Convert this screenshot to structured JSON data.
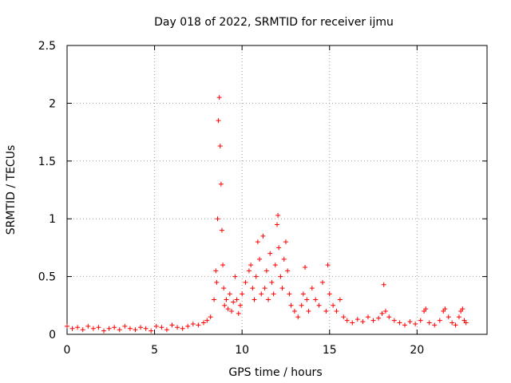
{
  "chart_data": {
    "type": "scatter",
    "title": "Day 018 of 2022, SRMTID for receiver ijmu",
    "xlabel": "GPS time / hours",
    "ylabel": "SRMTID / TECUs",
    "xlim": [
      0,
      24
    ],
    "ylim": [
      0,
      2.5
    ],
    "xticks": [
      0,
      5,
      10,
      15,
      20
    ],
    "yticks": [
      0,
      0.5,
      1,
      1.5,
      2,
      2.5
    ],
    "xtick_labels": [
      "0",
      "5",
      "10",
      "15",
      "20"
    ],
    "ytick_labels": [
      "0",
      "0.5",
      "1",
      "1.5",
      "2",
      "2.5"
    ],
    "grid": true,
    "marker": "plus",
    "series": [
      {
        "name": "SRMTID",
        "color": "#ff0000",
        "x": [
          0.0,
          0.3,
          0.6,
          0.9,
          1.2,
          1.5,
          1.8,
          2.1,
          2.4,
          2.7,
          3.0,
          3.3,
          3.6,
          3.9,
          4.2,
          4.5,
          4.8,
          5.1,
          5.4,
          5.7,
          6.0,
          6.3,
          6.6,
          6.9,
          7.2,
          7.5,
          7.8,
          8.0,
          8.2,
          8.4,
          8.5,
          8.55,
          8.6,
          8.65,
          8.7,
          8.75,
          8.8,
          8.85,
          8.9,
          8.95,
          9.0,
          9.1,
          9.2,
          9.3,
          9.4,
          9.5,
          9.6,
          9.7,
          9.8,
          9.9,
          10.0,
          10.2,
          10.4,
          10.5,
          10.6,
          10.7,
          10.8,
          10.9,
          11.0,
          11.1,
          11.2,
          11.3,
          11.4,
          11.5,
          11.6,
          11.7,
          11.8,
          11.9,
          12.0,
          12.05,
          12.1,
          12.2,
          12.3,
          12.4,
          12.5,
          12.6,
          12.7,
          12.8,
          13.0,
          13.2,
          13.4,
          13.5,
          13.6,
          13.7,
          13.8,
          14.0,
          14.2,
          14.4,
          14.6,
          14.8,
          14.9,
          15.0,
          15.2,
          15.4,
          15.6,
          15.8,
          16.0,
          16.3,
          16.6,
          16.9,
          17.2,
          17.5,
          17.8,
          18.0,
          18.1,
          18.2,
          18.4,
          18.7,
          19.0,
          19.3,
          19.6,
          19.9,
          20.2,
          20.4,
          20.5,
          20.7,
          21.0,
          21.3,
          21.5,
          21.6,
          21.8,
          22.0,
          22.2,
          22.4,
          22.5,
          22.6,
          22.7,
          22.8
        ],
        "y": [
          0.07,
          0.05,
          0.06,
          0.04,
          0.07,
          0.05,
          0.06,
          0.03,
          0.05,
          0.06,
          0.04,
          0.07,
          0.05,
          0.04,
          0.06,
          0.05,
          0.03,
          0.07,
          0.06,
          0.04,
          0.08,
          0.06,
          0.05,
          0.07,
          0.09,
          0.08,
          0.1,
          0.12,
          0.15,
          0.3,
          0.55,
          0.45,
          1.0,
          1.85,
          2.05,
          1.63,
          1.3,
          0.9,
          0.6,
          0.4,
          0.25,
          0.3,
          0.22,
          0.35,
          0.2,
          0.28,
          0.5,
          0.3,
          0.18,
          0.25,
          0.35,
          0.45,
          0.55,
          0.6,
          0.4,
          0.3,
          0.5,
          0.8,
          0.65,
          0.35,
          0.85,
          0.4,
          0.55,
          0.3,
          0.7,
          0.45,
          0.35,
          0.6,
          0.95,
          1.03,
          0.75,
          0.5,
          0.4,
          0.65,
          0.8,
          0.55,
          0.35,
          0.25,
          0.2,
          0.15,
          0.25,
          0.35,
          0.58,
          0.3,
          0.2,
          0.4,
          0.3,
          0.25,
          0.45,
          0.2,
          0.6,
          0.35,
          0.25,
          0.2,
          0.3,
          0.15,
          0.12,
          0.1,
          0.13,
          0.11,
          0.15,
          0.12,
          0.14,
          0.18,
          0.43,
          0.2,
          0.15,
          0.12,
          0.1,
          0.08,
          0.11,
          0.09,
          0.12,
          0.2,
          0.22,
          0.1,
          0.08,
          0.12,
          0.2,
          0.22,
          0.15,
          0.1,
          0.08,
          0.15,
          0.2,
          0.22,
          0.12,
          0.1
        ]
      }
    ]
  }
}
